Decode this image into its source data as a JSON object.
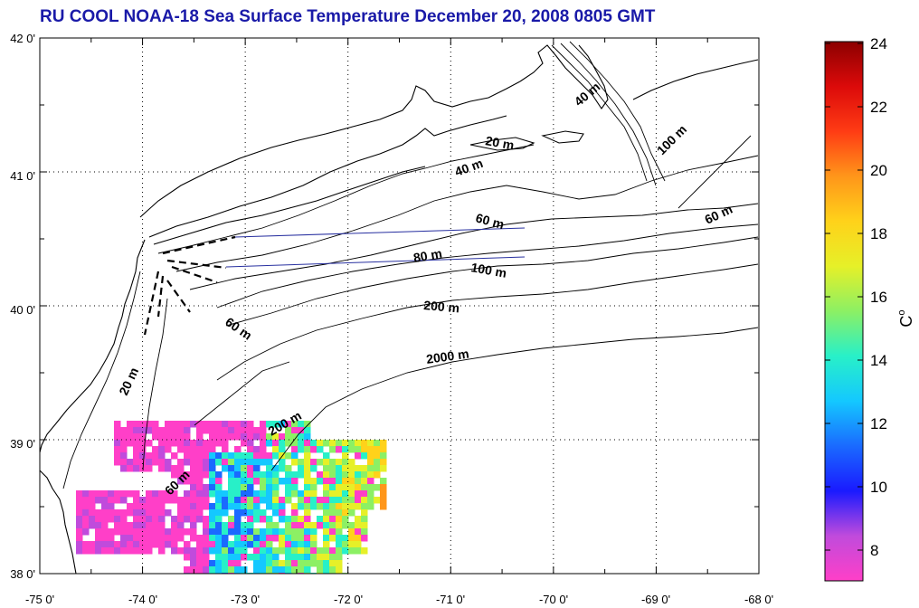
{
  "title": "RU COOL  NOAA-18 Sea Surface Temperature December 20, 2008 0805 GMT",
  "map": {
    "lon_range": [
      -75,
      -68
    ],
    "lat_range": [
      38,
      42
    ],
    "lon_ticks": [
      "-75 0'",
      "-74 0'",
      "-73 0'",
      "-72 0'",
      "-71 0'",
      "-70 0'",
      "-69 0'",
      "-68 0'"
    ],
    "lat_ticks": [
      "42 0'",
      "41 0'",
      "40 0'",
      "39 0'",
      "38 0'"
    ],
    "grid": "dotted",
    "contour_labels": [
      "20 m",
      "40 m",
      "60 m",
      "80 m",
      "100 m",
      "200 m",
      "2000 m",
      "20 m",
      "60 m",
      "200 m",
      "60 m",
      "40 m",
      "100 m",
      "60 m"
    ]
  },
  "colorbar": {
    "ticks": [
      "24",
      "22",
      "20",
      "18",
      "16",
      "14",
      "12",
      "10",
      "8"
    ],
    "unit": "C",
    "unit_superscript": "o",
    "range": [
      7,
      24
    ],
    "colors": [
      "#ff3fc8",
      "#c04bdc",
      "#1a1aff",
      "#1a6aff",
      "#14c8ff",
      "#28f0c8",
      "#8cf064",
      "#e6f028",
      "#ffd21a",
      "#ff961a",
      "#ff3c14",
      "#dc0a0a",
      "#8c0000"
    ]
  }
}
